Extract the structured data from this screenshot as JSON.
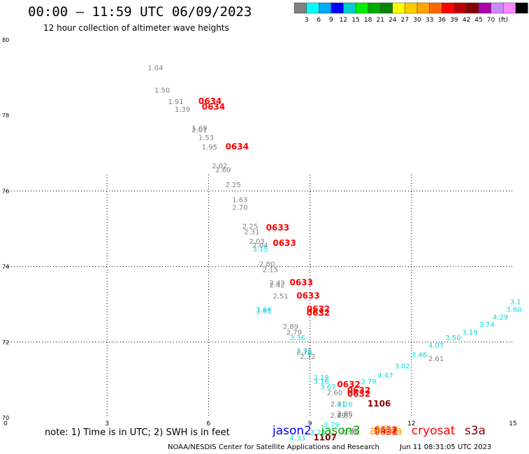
{
  "header": {
    "title": "00:00 – 11:59 UTC 06/09/2023",
    "subtitle": "12 hour collection of altimeter wave heights"
  },
  "colorbar": {
    "colors": [
      "#808080",
      "#00ffff",
      "#00aaff",
      "#0000ff",
      "#00cccc",
      "#00ee00",
      "#00aa00",
      "#008800",
      "#ffff00",
      "#ffcc00",
      "#ffa500",
      "#ff6600",
      "#ff0000",
      "#bb0000",
      "#880000",
      "#aa00aa",
      "#cc88ff",
      "#ff88ff",
      "#000000"
    ],
    "labels": [
      "3",
      "6",
      "9",
      "12",
      "15",
      "18",
      "21",
      "24",
      "27",
      "30",
      "33",
      "36",
      "39",
      "42",
      "45",
      "70",
      "(ft)"
    ]
  },
  "chart_data": {
    "type": "scatter",
    "xlim": [
      0,
      15
    ],
    "ylim": [
      70,
      80
    ],
    "x_ticks": [
      0,
      3,
      6,
      9,
      12,
      15
    ],
    "y_ticks": [
      70,
      72,
      74,
      76,
      78,
      80
    ],
    "grid": true,
    "series_colors": {
      "gray": "#808080",
      "cyan": "#00e0e0",
      "red": "#ff0000",
      "darkred": "#880000"
    },
    "points": [
      {
        "x": 4.2,
        "y": 79.2,
        "label": "1.04",
        "color": "gray"
      },
      {
        "x": 4.4,
        "y": 78.6,
        "label": "1.50",
        "color": "gray"
      },
      {
        "x": 4.8,
        "y": 78.3,
        "label": "1.91",
        "color": "gray"
      },
      {
        "x": 5.0,
        "y": 78.1,
        "label": "1.39",
        "color": "gray"
      },
      {
        "x": 5.7,
        "y": 78.3,
        "label": "0634",
        "color": "red"
      },
      {
        "x": 5.8,
        "y": 78.15,
        "label": "0634",
        "color": "red"
      },
      {
        "x": 5.5,
        "y": 77.6,
        "label": "1.69",
        "color": "gray"
      },
      {
        "x": 5.5,
        "y": 77.55,
        "label": "2.01",
        "color": "gray"
      },
      {
        "x": 5.7,
        "y": 77.35,
        "label": "1.53",
        "color": "gray"
      },
      {
        "x": 5.8,
        "y": 77.1,
        "label": "1.95",
        "color": "gray"
      },
      {
        "x": 6.5,
        "y": 77.1,
        "label": "0634",
        "color": "red"
      },
      {
        "x": 6.1,
        "y": 76.6,
        "label": "2.02",
        "color": "gray"
      },
      {
        "x": 6.2,
        "y": 76.5,
        "label": "2.60",
        "color": "gray"
      },
      {
        "x": 6.5,
        "y": 76.1,
        "label": "2.25",
        "color": "gray"
      },
      {
        "x": 6.7,
        "y": 75.7,
        "label": "1.63",
        "color": "gray"
      },
      {
        "x": 6.7,
        "y": 75.5,
        "label": "2.70",
        "color": "gray"
      },
      {
        "x": 7.0,
        "y": 75.0,
        "label": "2.25",
        "color": "gray"
      },
      {
        "x": 7.05,
        "y": 74.85,
        "label": "2.31",
        "color": "gray"
      },
      {
        "x": 7.7,
        "y": 74.95,
        "label": "0633",
        "color": "red"
      },
      {
        "x": 7.2,
        "y": 74.6,
        "label": "2.03",
        "color": "gray"
      },
      {
        "x": 7.3,
        "y": 74.5,
        "label": "2.04",
        "color": "gray"
      },
      {
        "x": 7.3,
        "y": 74.4,
        "label": "3.15",
        "color": "cyan"
      },
      {
        "x": 7.9,
        "y": 74.55,
        "label": "0633",
        "color": "red"
      },
      {
        "x": 7.5,
        "y": 74.0,
        "label": "2.80",
        "color": "gray"
      },
      {
        "x": 7.6,
        "y": 73.85,
        "label": "2.15",
        "color": "gray"
      },
      {
        "x": 7.8,
        "y": 73.5,
        "label": "2.43",
        "color": "gray"
      },
      {
        "x": 7.8,
        "y": 73.45,
        "label": "2.42",
        "color": "gray"
      },
      {
        "x": 8.4,
        "y": 73.5,
        "label": "0633",
        "color": "red"
      },
      {
        "x": 7.9,
        "y": 73.15,
        "label": "2.51",
        "color": "gray"
      },
      {
        "x": 8.6,
        "y": 73.15,
        "label": "0633",
        "color": "red"
      },
      {
        "x": 7.4,
        "y": 72.8,
        "label": "3.64",
        "color": "cyan"
      },
      {
        "x": 7.4,
        "y": 72.75,
        "label": "3.41",
        "color": "cyan"
      },
      {
        "x": 8.9,
        "y": 72.8,
        "label": "0632",
        "color": "red"
      },
      {
        "x": 8.9,
        "y": 72.7,
        "label": "0632",
        "color": "red"
      },
      {
        "x": 8.2,
        "y": 72.35,
        "label": "2.89",
        "color": "gray"
      },
      {
        "x": 8.3,
        "y": 72.2,
        "label": "2.79",
        "color": "gray"
      },
      {
        "x": 8.4,
        "y": 72.05,
        "label": "3.36",
        "color": "cyan"
      },
      {
        "x": 8.6,
        "y": 71.7,
        "label": "2.75",
        "color": "gray"
      },
      {
        "x": 8.6,
        "y": 71.65,
        "label": "2.76",
        "color": "cyan"
      },
      {
        "x": 8.7,
        "y": 71.55,
        "label": "2.32",
        "color": "gray"
      },
      {
        "x": 9.1,
        "y": 71.0,
        "label": "3.18",
        "color": "cyan"
      },
      {
        "x": 9.1,
        "y": 70.9,
        "label": "3.16",
        "color": "cyan"
      },
      {
        "x": 9.3,
        "y": 70.75,
        "label": "3.67",
        "color": "cyan"
      },
      {
        "x": 9.8,
        "y": 70.8,
        "label": "0632",
        "color": "red"
      },
      {
        "x": 9.5,
        "y": 70.6,
        "label": "2.60",
        "color": "gray"
      },
      {
        "x": 10.1,
        "y": 70.65,
        "label": "0632",
        "color": "red"
      },
      {
        "x": 10.1,
        "y": 70.55,
        "label": "0632",
        "color": "red"
      },
      {
        "x": 9.6,
        "y": 70.3,
        "label": "2.41",
        "color": "gray"
      },
      {
        "x": 9.8,
        "y": 70.3,
        "label": "3.26",
        "color": "cyan"
      },
      {
        "x": 10.7,
        "y": 70.3,
        "label": "1106",
        "color": "darkred"
      },
      {
        "x": 9.8,
        "y": 70.05,
        "label": "2.96",
        "color": "gray"
      },
      {
        "x": 9.8,
        "y": 70.0,
        "label": "2.69",
        "color": "gray"
      },
      {
        "x": 9.6,
        "y": 70.0,
        "label": "2.49",
        "color": "gray"
      },
      {
        "x": 9.4,
        "y": 69.75,
        "label": "3.79",
        "color": "cyan"
      },
      {
        "x": 9.0,
        "y": 69.55,
        "label": "3.23",
        "color": "cyan"
      },
      {
        "x": 8.4,
        "y": 69.4,
        "label": "4.33",
        "color": "cyan"
      },
      {
        "x": 9.1,
        "y": 69.4,
        "label": "1107",
        "color": "darkred"
      },
      {
        "x": 9.9,
        "y": 69.6,
        "label": "2.78",
        "color": "gray"
      },
      {
        "x": 10.0,
        "y": 69.55,
        "label": "2.78",
        "color": "gray"
      },
      {
        "x": 10.9,
        "y": 69.6,
        "label": "0632",
        "color": "red"
      },
      {
        "x": 10.9,
        "y": 69.55,
        "label": "0632",
        "color": "red"
      },
      {
        "x": 10.5,
        "y": 70.9,
        "label": "3.79",
        "color": "cyan"
      },
      {
        "x": 11.0,
        "y": 71.05,
        "label": "4.47",
        "color": "cyan"
      },
      {
        "x": 11.5,
        "y": 71.3,
        "label": "3.02",
        "color": "cyan"
      },
      {
        "x": 12.5,
        "y": 71.5,
        "label": "2.61",
        "color": "gray"
      },
      {
        "x": 12.0,
        "y": 71.6,
        "label": "3.46",
        "color": "cyan"
      },
      {
        "x": 12.5,
        "y": 71.85,
        "label": "4.07",
        "color": "cyan"
      },
      {
        "x": 13.0,
        "y": 72.05,
        "label": "3.50",
        "color": "cyan"
      },
      {
        "x": 13.5,
        "y": 72.2,
        "label": "3.19",
        "color": "cyan"
      },
      {
        "x": 14.0,
        "y": 72.4,
        "label": "3.74",
        "color": "cyan"
      },
      {
        "x": 14.4,
        "y": 72.6,
        "label": "4.29",
        "color": "cyan"
      },
      {
        "x": 14.8,
        "y": 72.8,
        "label": "3.60",
        "color": "cyan"
      },
      {
        "x": 15.2,
        "y": 73.0,
        "label": "3.1",
        "color": "cyan"
      }
    ]
  },
  "note": "note: 1) Time is in UTC; 2) SWH is in feet",
  "legend": [
    {
      "name": "jason2",
      "color": "#0000ff"
    },
    {
      "name": "jason3",
      "color": "#00aa00"
    },
    {
      "name": "altika",
      "color": "#ff9900"
    },
    {
      "name": "cryosat",
      "color": "#ff0000"
    },
    {
      "name": "s3a",
      "color": "#880000"
    }
  ],
  "footer": {
    "org": "NOAA/NESDIS Center for Satellite Applications and Research",
    "timestamp": "Jun 11 08:31:05 UTC 2023"
  }
}
